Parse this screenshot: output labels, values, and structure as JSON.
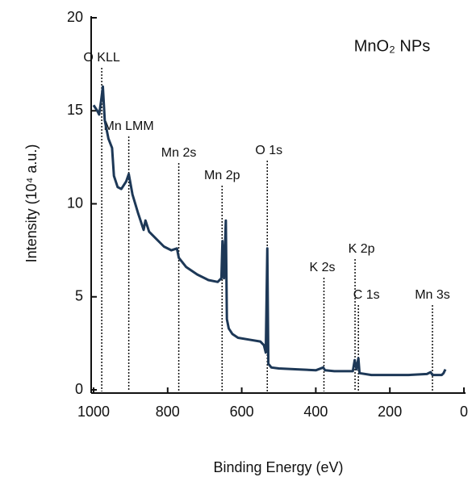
{
  "chart_data": {
    "type": "line",
    "title": "MnO₂ NPs",
    "xlabel": "Binding Energy (eV)",
    "ylabel": "Intensity (10⁴ a.u.)",
    "x": [
      1000,
      990,
      985,
      980,
      975,
      970,
      960,
      950,
      945,
      935,
      925,
      912,
      905,
      895,
      880,
      865,
      860,
      850,
      830,
      810,
      790,
      775,
      770,
      750,
      720,
      690,
      665,
      655,
      652,
      648,
      643,
      640,
      635,
      625,
      610,
      580,
      550,
      540,
      535,
      531,
      528,
      520,
      500,
      450,
      400,
      380,
      375,
      350,
      300,
      295,
      290,
      285,
      282,
      250,
      200,
      150,
      100,
      90,
      85,
      60,
      55,
      50
    ],
    "values": [
      15.3,
      15.0,
      14.8,
      15.5,
      16.3,
      14.5,
      13.5,
      13.0,
      11.5,
      10.9,
      10.8,
      11.2,
      11.6,
      10.5,
      9.5,
      8.6,
      9.1,
      8.5,
      8.1,
      7.7,
      7.5,
      7.6,
      7.1,
      6.6,
      6.2,
      5.9,
      5.8,
      6.0,
      8.0,
      6.0,
      9.1,
      3.8,
      3.3,
      3.0,
      2.8,
      2.7,
      2.6,
      2.4,
      2.0,
      7.6,
      1.4,
      1.2,
      1.15,
      1.1,
      1.05,
      1.2,
      1.05,
      1.0,
      1.0,
      1.6,
      1.1,
      1.7,
      0.9,
      0.8,
      0.8,
      0.8,
      0.85,
      0.95,
      0.8,
      0.8,
      0.9,
      1.1
    ],
    "color": "#1d3857",
    "xlim": [
      1000,
      0
    ],
    "xticks": [
      1000,
      800,
      600,
      400,
      200,
      0
    ],
    "ylim": [
      0,
      20
    ],
    "yticks": [
      0,
      5,
      10,
      15,
      20
    ],
    "annotations": [
      {
        "text": "O KLL",
        "x": 978
      },
      {
        "text": "Mn LMM",
        "x": 905
      },
      {
        "text": "Mn 2s",
        "x": 770
      },
      {
        "text": "Mn 2p",
        "x": 653
      },
      {
        "text": "O 1s",
        "x": 531
      },
      {
        "text": "K 2s",
        "x": 378
      },
      {
        "text": "K 2p",
        "x": 294
      },
      {
        "text": "C 1s",
        "x": 285
      },
      {
        "text": "Mn 3s",
        "x": 85
      }
    ]
  }
}
